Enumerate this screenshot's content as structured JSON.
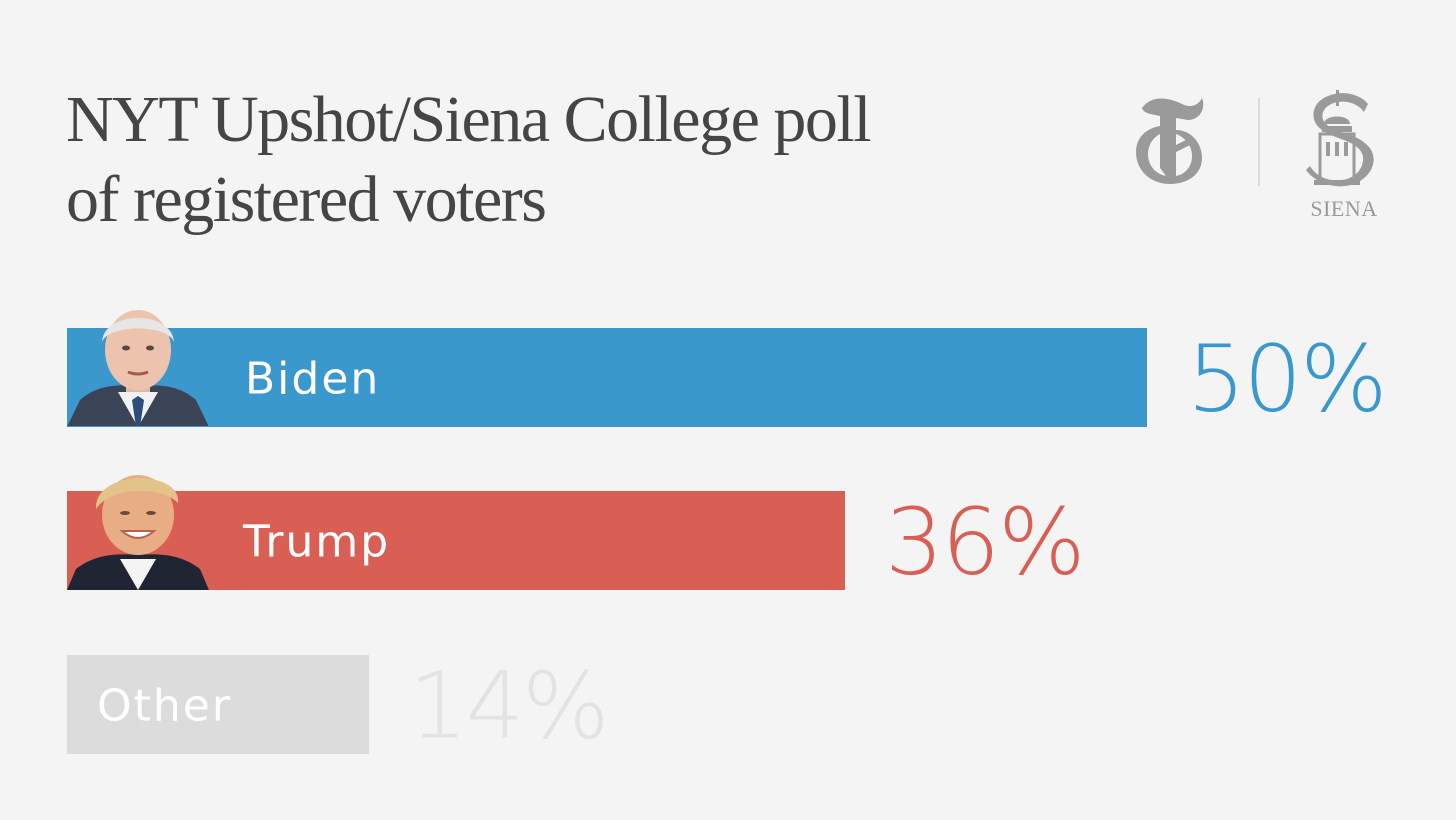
{
  "header": {
    "title_line1": "NYT Upshot/Siena College poll",
    "title_line2": "of registered voters",
    "logo_nyt": "nyt-t-logo",
    "logo_siena_text": "SIENA"
  },
  "colors": {
    "background": "#f4f4f4",
    "biden": "#3a98cc",
    "trump": "#d95f55",
    "other": "#dcdcdc",
    "other_text": "#e3e3e3",
    "logo_gray": "#9a9a9a"
  },
  "chart_data": {
    "type": "bar",
    "orientation": "horizontal",
    "title": "NYT Upshot/Siena College poll of registered voters",
    "categories": [
      "Biden",
      "Trump",
      "Other"
    ],
    "values": [
      50,
      36,
      14
    ],
    "value_labels": [
      "50%",
      "36%",
      "14%"
    ],
    "unit": "%",
    "xlim": [
      0,
      50
    ],
    "grid": false,
    "legend": "none",
    "portraits": [
      "biden-portrait",
      "trump-portrait",
      null
    ]
  }
}
